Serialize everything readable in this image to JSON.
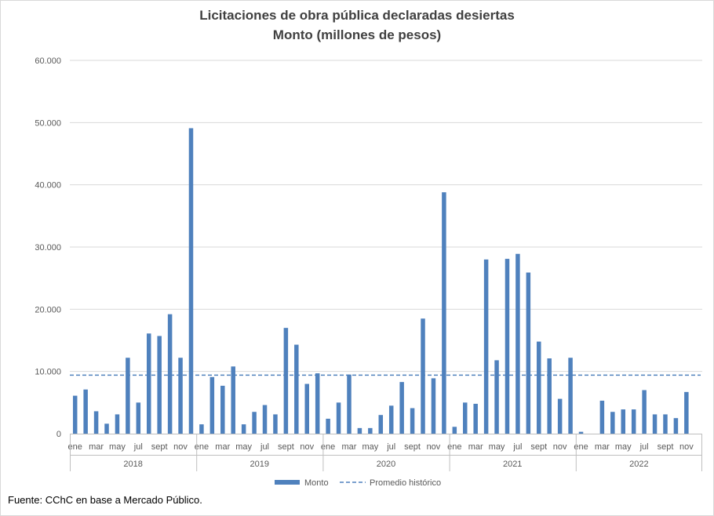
{
  "chart_data": {
    "type": "bar",
    "title": "Licitaciones de obra pública declaradas desiertas",
    "subtitle": "Monto (millones de pesos)",
    "ylim": [
      0,
      60000
    ],
    "yticks": [
      "0",
      "10.000",
      "20.000",
      "30.000",
      "40.000",
      "50.000",
      "60.000"
    ],
    "ytick_values": [
      0,
      10000,
      20000,
      30000,
      40000,
      50000,
      60000
    ],
    "month_labels": [
      "ene",
      "mar",
      "may",
      "jul",
      "sept",
      "nov"
    ],
    "years": [
      "2018",
      "2019",
      "2020",
      "2021",
      "2022"
    ],
    "series": [
      {
        "name": "Monto",
        "color": "#4f81bd",
        "values": [
          6100,
          7100,
          3600,
          1600,
          3100,
          12200,
          5000,
          16100,
          15700,
          19200,
          12200,
          49100,
          1500,
          9100,
          7700,
          10800,
          1500,
          3500,
          4600,
          3100,
          17000,
          14300,
          8000,
          9700,
          2400,
          5000,
          9500,
          900,
          900,
          3000,
          4500,
          8300,
          4100,
          18500,
          8900,
          38800,
          1100,
          5000,
          4800,
          28000,
          11800,
          28100,
          28900,
          25900,
          14800,
          12100,
          5600,
          12200,
          300,
          0,
          5300,
          3500,
          3900,
          3900,
          7000,
          3100,
          3100,
          2500,
          6700,
          null
        ]
      },
      {
        "name": "Promedio histórico",
        "color": "#4f81bd",
        "style": "dashed",
        "value": 9400
      }
    ],
    "legend": [
      "Monto",
      "Promedio histórico"
    ]
  },
  "source": "Fuente: CChC en base a Mercado Público."
}
